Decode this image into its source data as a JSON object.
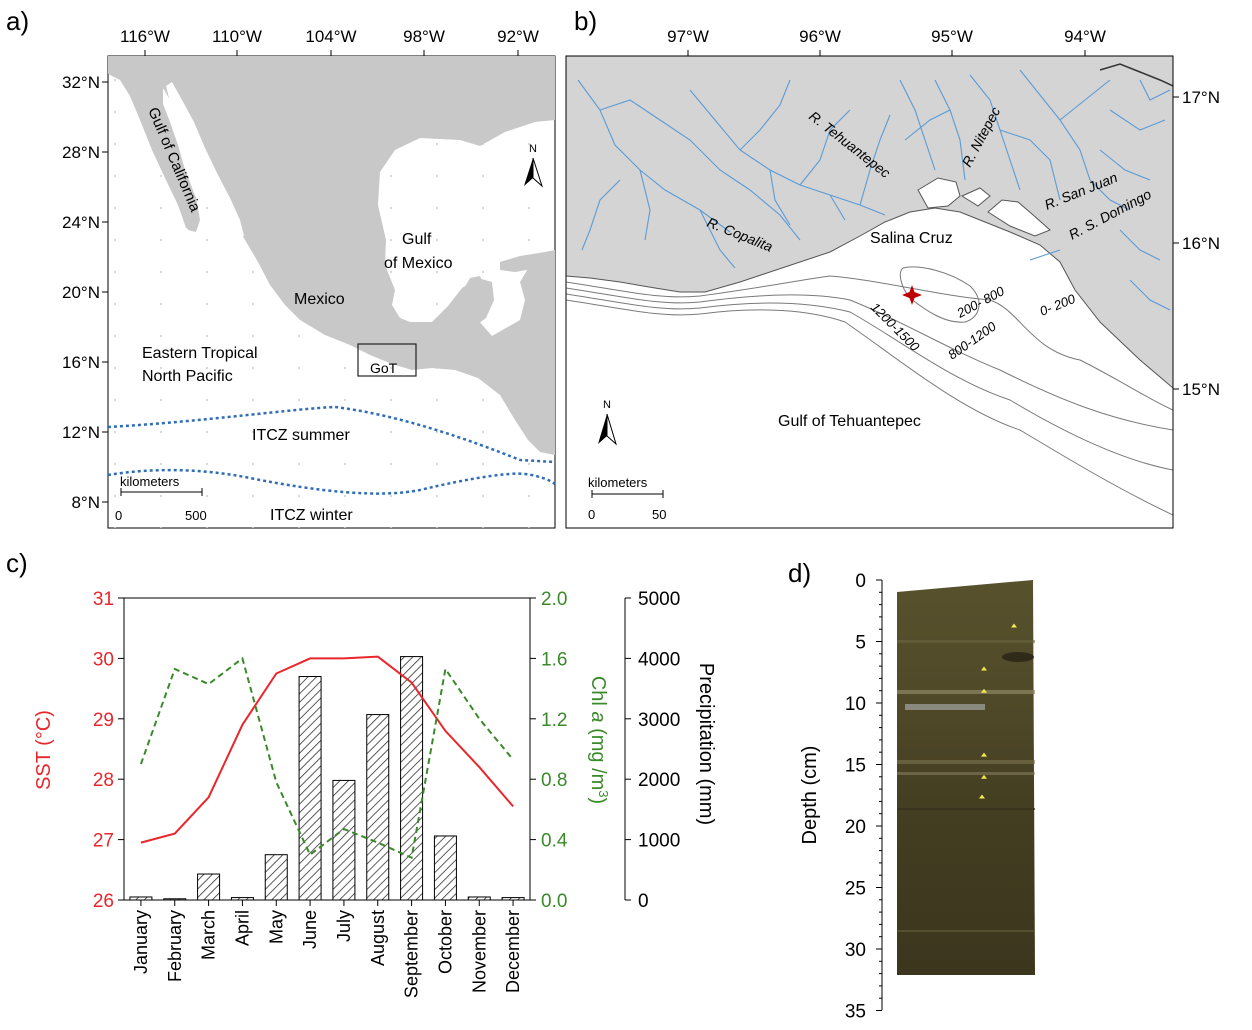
{
  "panel_a": {
    "letter": "a)",
    "lon_ticks": [
      "116°W",
      "110°W",
      "104°W",
      "98°W",
      "92°W"
    ],
    "lat_ticks": [
      "32°N",
      "28°N",
      "24°N",
      "20°N",
      "16°N",
      "12°N",
      "8°N"
    ],
    "labels": {
      "gulf_california": "Gulf of California",
      "gulf_mexico_1": "Gulf",
      "gulf_mexico_2": "of Mexico",
      "mexico": "Mexico",
      "etnp_1": "Eastern Tropical",
      "etnp_2": "North Pacific",
      "got": "GoT",
      "itcz_summer": "ITCZ summer",
      "itcz_winter": "ITCZ winter",
      "north": "N"
    },
    "scale": {
      "title": "kilometers",
      "start": "0",
      "end": "500"
    },
    "colors": {
      "land": "#c8c8c8",
      "itcz": "#2f6db5"
    }
  },
  "panel_b": {
    "letter": "b)",
    "lon_ticks": [
      "97°W",
      "96°W",
      "95°W",
      "94°W"
    ],
    "lat_ticks": [
      "17°N",
      "16°N",
      "15°N"
    ],
    "labels": {
      "r_tehuantepec": "R. Tehuantepec",
      "r_nitepec": "R. Nitepec",
      "r_san_juan": "R. San Juan",
      "r_s_domingo": "R. S. Domingo",
      "r_copalita": "R. Copalita",
      "salina_cruz": "Salina Cruz",
      "iso_0_200": "0- 200",
      "iso_200_800": "200- 800",
      "iso_800_1200": "800-1200",
      "iso_1200_1500": "1200-1500",
      "gulf_tehuantepec": "Gulf of Tehuantepec",
      "north": "N"
    },
    "scale": {
      "title": "kilometers",
      "start": "0",
      "end": "50"
    },
    "colors": {
      "land": "#d4d4d4",
      "river": "#5b9bd5",
      "star": "#c00000",
      "isobath": "#7a7a7a"
    }
  },
  "panel_c": {
    "letter": "c)",
    "sst_axis_title": "SST (°C)",
    "chl_axis_title_1": "Chl ",
    "chl_axis_title_a": "a",
    "chl_axis_title_2": " (mg /m",
    "chl_axis_title_sup": "3",
    "chl_axis_title_3": ")",
    "precip_axis_title": "Precipitation (mm)",
    "sst_ticks": [
      "26",
      "27",
      "28",
      "29",
      "30",
      "31"
    ],
    "chl_ticks": [
      "0.0",
      "0.4",
      "0.8",
      "1.2",
      "1.6",
      "2.0"
    ],
    "precip_ticks": [
      "0",
      "1000",
      "2000",
      "3000",
      "4000",
      "5000"
    ]
  },
  "panel_d": {
    "letter": "d)",
    "axis_title": "Depth (cm)",
    "depth_ticks": [
      "0",
      "5",
      "10",
      "15",
      "20",
      "25",
      "30",
      "35"
    ],
    "colors": {
      "core": "#4b4526",
      "marker": "#f2e94e"
    }
  },
  "chart_data": {
    "type": "bar",
    "categories": [
      "January",
      "February",
      "March",
      "April",
      "May",
      "June",
      "July",
      "August",
      "September",
      "October",
      "November",
      "December"
    ],
    "series": [
      {
        "name": "Precipitation (mm)",
        "type": "bar",
        "axis": "right",
        "values": [
          50,
          20,
          430,
          40,
          750,
          3700,
          1980,
          3070,
          4030,
          1060,
          50,
          40
        ]
      },
      {
        "name": "SST (°C)",
        "type": "line",
        "axis": "left",
        "color": "#e8262b",
        "values": [
          26.95,
          27.1,
          27.7,
          28.9,
          29.75,
          30.0,
          30.0,
          30.03,
          29.6,
          28.8,
          28.2,
          27.55
        ]
      },
      {
        "name": "Chl a (mg /m3)",
        "type": "line",
        "axis": "right-inner",
        "color": "#3a8a2a",
        "values": [
          0.9,
          1.53,
          1.43,
          1.6,
          0.78,
          0.3,
          0.47,
          0.38,
          0.28,
          1.53,
          1.2,
          0.93
        ]
      }
    ],
    "ylim_sst": [
      26,
      31
    ],
    "ylim_chl": [
      0,
      2
    ],
    "ylim_precip": [
      0,
      5000
    ]
  }
}
